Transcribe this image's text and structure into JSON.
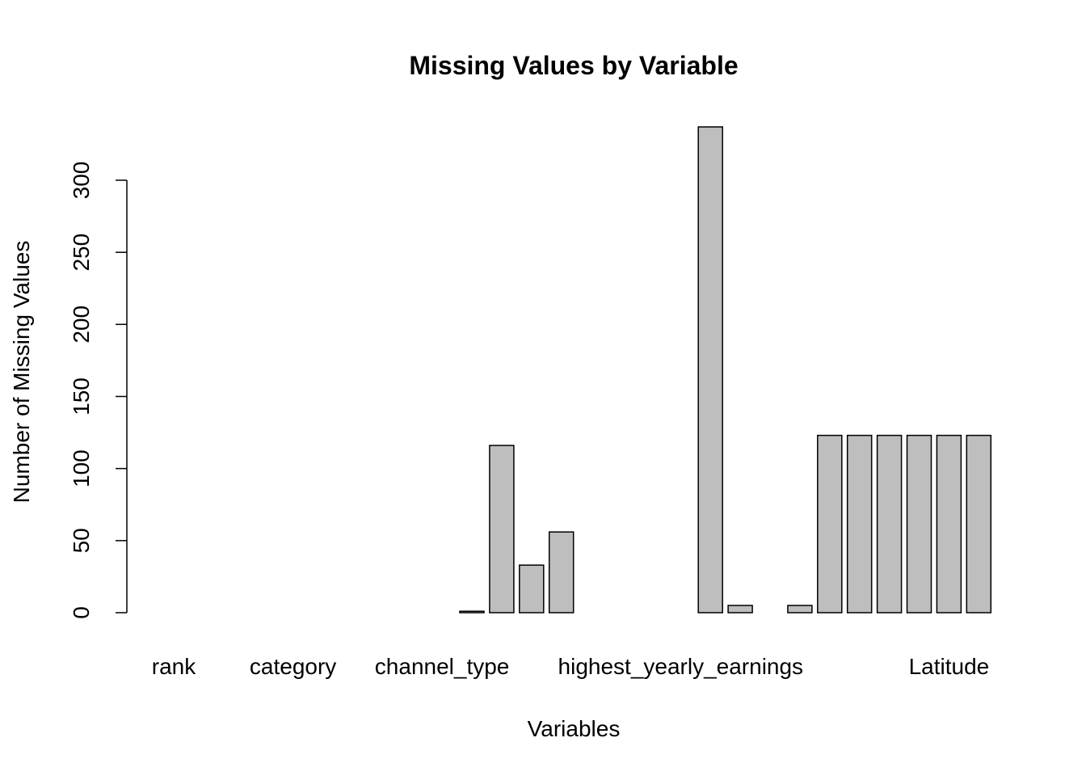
{
  "chart_data": {
    "type": "bar",
    "title": "Missing Values by Variable",
    "x_label": "Variables",
    "y_label": "Number of Missing Values",
    "categories": [
      "rank",
      null,
      null,
      null,
      "category",
      null,
      null,
      null,
      null,
      "channel_type",
      null,
      null,
      null,
      null,
      null,
      null,
      null,
      "highest_yearly_earnings",
      null,
      null,
      null,
      null,
      null,
      null,
      null,
      null,
      "Latitude",
      null
    ],
    "values": [
      0,
      0,
      0,
      0,
      0,
      0,
      0,
      0,
      0,
      0,
      1,
      116,
      33,
      56,
      0,
      0,
      0,
      0,
      337,
      5,
      0,
      5,
      123,
      123,
      123,
      123,
      123,
      123
    ],
    "color": "#bebebe",
    "ylim": [
      0,
      337
    ],
    "yticks": [
      0,
      50,
      100,
      150,
      200,
      250,
      300
    ],
    "grid": false
  }
}
